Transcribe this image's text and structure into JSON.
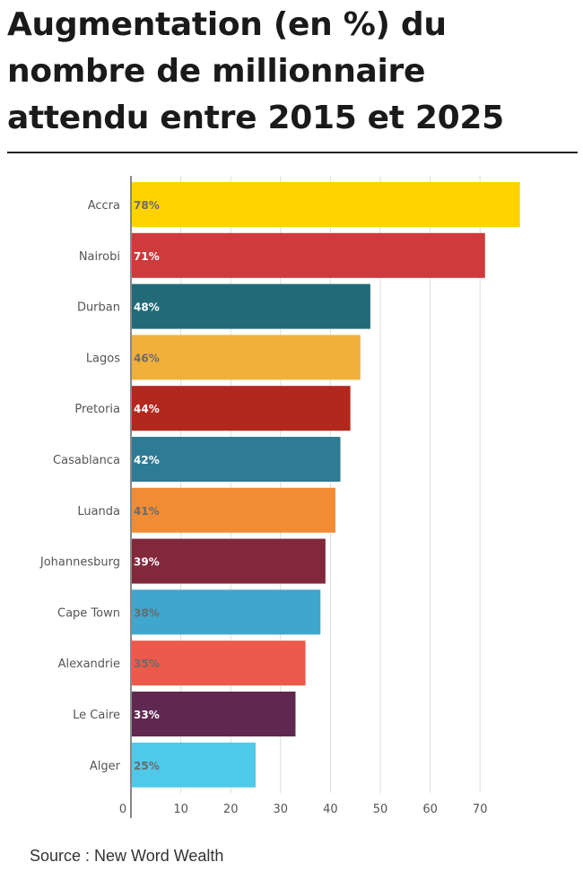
{
  "title": "Augmentation (en %) du nombre de millionnaire attendu entre 2015 et 2025",
  "source": "Source : New Word Wealth",
  "chart_data": {
    "type": "bar",
    "orientation": "horizontal",
    "title": "Augmentation (en %) du nombre de millionnaire attendu entre 2015 et 2025",
    "xlabel": "",
    "ylabel": "",
    "xlim": [
      0,
      80
    ],
    "xticks": [
      "0",
      "10",
      "20",
      "30",
      "40",
      "50",
      "60",
      "70"
    ],
    "grid": true,
    "categories": [
      "Accra",
      "Nairobi",
      "Durban",
      "Lagos",
      "Pretoria",
      "Casablanca",
      "Luanda",
      "Johannesburg",
      "Cape Town",
      "Alexandrie",
      "Le Caire",
      "Alger"
    ],
    "values": [
      78,
      71,
      48,
      46,
      44,
      42,
      41,
      39,
      38,
      35,
      33,
      25
    ],
    "value_labels": [
      "78%",
      "71%",
      "48%",
      "46%",
      "44%",
      "42%",
      "41%",
      "39%",
      "38%",
      "35%",
      "33%",
      "25%"
    ],
    "colors": [
      "#ffd200",
      "#cf3a3c",
      "#236a78",
      "#f0b03a",
      "#b2281f",
      "#2e7b96",
      "#f28c34",
      "#81283a",
      "#3fa6cc",
      "#ec5a4c",
      "#5e2850",
      "#4fc9e9"
    ],
    "label_colors": [
      "#6b6b6b",
      "#ffffff",
      "#ffffff",
      "#6b6b6b",
      "#ffffff",
      "#ffffff",
      "#6b6b6b",
      "#ffffff",
      "#6b6b6b",
      "#6b6b6b",
      "#ffffff",
      "#6b6b6b"
    ]
  }
}
